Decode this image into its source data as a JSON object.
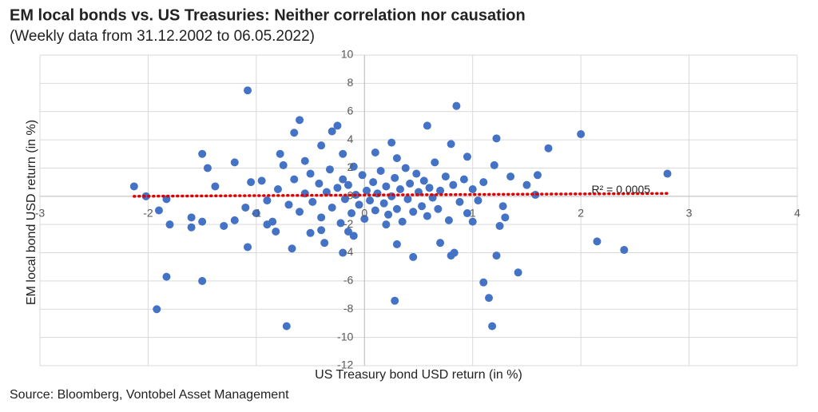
{
  "chart_data": {
    "type": "scatter",
    "title": "EM local bonds vs. US Treasuries: Neither correlation nor causation",
    "subtitle": "(Weekly data from 31.12.2002 to 06.05.2022)",
    "x_label": "US Treasury bond USD return (in %)",
    "y_label": "EM local bond  USD return (in %)",
    "source": "Source: Bloomberg, Vontobel Asset Management",
    "color": "#4472c4",
    "grid": true,
    "xlim": [
      -3,
      4
    ],
    "xticks": [
      -3,
      -2,
      -1,
      0,
      1,
      2,
      3,
      4
    ],
    "ylim": [
      -12,
      10
    ],
    "yticks": [
      -12,
      -10,
      -8,
      -6,
      -4,
      -2,
      0,
      2,
      4,
      6,
      8,
      10
    ],
    "trendline": {
      "label": "R² = 0.0005",
      "x": [
        -2.13,
        2.8
      ],
      "values": [
        0.0,
        0.2
      ],
      "color": "#e00000"
    },
    "x": [
      -2.13,
      -2.02,
      -1.9,
      -1.83,
      -1.92,
      -1.8,
      -1.83,
      -1.5,
      -1.45,
      -1.5,
      -1.5,
      -1.6,
      -1.6,
      -1.38,
      -1.3,
      -1.2,
      -1.2,
      -1.1,
      -1.08,
      -1.08,
      -1.05,
      -0.85,
      -0.9,
      -0.78,
      -0.72,
      -0.82,
      -0.67,
      -0.65,
      -0.6,
      -0.55,
      -0.5,
      -0.4,
      -0.37,
      -0.3,
      -0.25,
      -0.2,
      -0.15,
      -0.2,
      -0.1,
      0.1,
      0.2,
      0.25,
      0.28,
      0.3,
      0.45,
      0.58,
      0.7,
      0.8,
      0.83,
      0.8,
      0.85,
      0.95,
      1.0,
      1.1,
      1.15,
      1.18,
      1.22,
      1.3,
      1.42,
      1.5,
      1.58,
      1.6,
      1.7,
      2.0,
      2.15,
      2.4,
      2.8,
      1.22,
      1.2,
      1.35,
      1.25,
      1.28,
      -0.8,
      -0.7,
      -0.65,
      -0.6,
      -0.55,
      -0.5,
      -0.48,
      -0.42,
      -0.4,
      -0.35,
      -0.32,
      -0.3,
      -0.25,
      -0.22,
      -0.2,
      -0.18,
      -0.15,
      -0.12,
      -0.1,
      -0.08,
      -0.05,
      -0.02,
      0,
      0.02,
      0.05,
      0.08,
      0.1,
      0.12,
      0.15,
      0.18,
      0.2,
      0.22,
      0.25,
      0.28,
      0.3,
      0.33,
      0.35,
      0.38,
      0.4,
      0.42,
      0.45,
      0.48,
      0.5,
      0.53,
      0.55,
      0.58,
      0.6,
      0.63,
      0.65,
      0.68,
      0.7,
      0.75,
      0.78,
      0.82,
      0.88,
      0.92,
      0.95,
      1.0,
      1.05,
      1.1,
      -0.9,
      -0.95,
      -1.0,
      -0.75,
      0.3,
      -0.4
    ],
    "values": [
      0.7,
      0,
      -1.0,
      -5.7,
      -8.0,
      -2.0,
      -0.2,
      3.0,
      2.0,
      -6.0,
      -1.8,
      -1.5,
      -2.2,
      0.7,
      -2.1,
      -1.7,
      2.4,
      -0.8,
      7.5,
      -3.6,
      1.0,
      -1.8,
      -2.0,
      3.0,
      -9.2,
      -2.5,
      -3.7,
      4.5,
      5.4,
      2.5,
      -2.6,
      3.6,
      -3.3,
      4.6,
      5.0,
      3.0,
      -2.5,
      -4.0,
      -2.8,
      3.1,
      -2.0,
      3.8,
      -7.4,
      -3.4,
      -4.3,
      5.0,
      -3.3,
      -4.2,
      -4.0,
      3.7,
      6.4,
      2.8,
      -1.8,
      -6.1,
      -7.2,
      -9.2,
      -4.2,
      -1.5,
      -5.4,
      0.8,
      0.1,
      1.5,
      3.4,
      4.4,
      -3.2,
      -3.8,
      1.6,
      4.1,
      2.2,
      1.4,
      -2.1,
      -0.7,
      0.5,
      -0.6,
      1.2,
      -1.1,
      0.2,
      1.6,
      -0.4,
      0.9,
      -1.5,
      0.3,
      1.9,
      -0.8,
      0.6,
      -1.9,
      1.2,
      -0.2,
      0.8,
      -1.2,
      2.1,
      0.1,
      -0.6,
      1.5,
      -1.6,
      0.4,
      -0.3,
      1.0,
      -1.0,
      0.2,
      1.8,
      -0.5,
      0.7,
      -1.3,
      0.0,
      1.3,
      -0.9,
      0.5,
      -1.8,
      2.0,
      -0.2,
      0.9,
      -1.1,
      1.6,
      0.3,
      -0.7,
      1.1,
      -1.4,
      0.6,
      -0.1,
      2.4,
      -0.9,
      0.4,
      1.4,
      -1.7,
      0.8,
      -0.4,
      1.2,
      -1.2,
      0.5,
      -0.3,
      1.0,
      -0.3,
      1.1,
      -1.2,
      2.2,
      2.7,
      -2.4
    ]
  }
}
